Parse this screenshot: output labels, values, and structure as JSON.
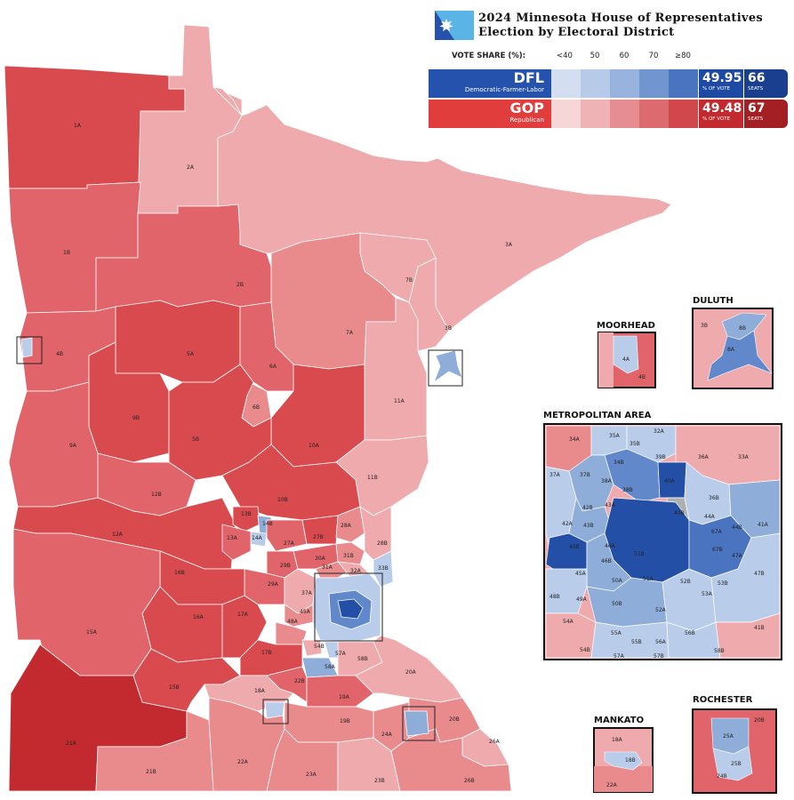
{
  "title": {
    "line1": "2024 Minnesota House of Representatives",
    "line2": "Election by Electoral District"
  },
  "legend": {
    "header": "VOTE SHARE (%):",
    "bins": [
      "<40",
      "50",
      "60",
      "70",
      "≥80"
    ],
    "dfl": {
      "short": "DFL",
      "long": "Democratic-Farmer-Labor",
      "vote_share": "49.95",
      "vote_share_caption": "% OF VOTE",
      "seats": "66",
      "seats_caption": "SEATS",
      "shades": [
        "#d3def0",
        "#b7cbe9",
        "#97b3de",
        "#7196cf",
        "#4a73c0",
        "#1e4aa3"
      ],
      "color": "#2552ad"
    },
    "gop": {
      "short": "GOP",
      "long": "Republican",
      "vote_share": "49.48",
      "vote_share_caption": "% OF VOTE",
      "seats": "67",
      "seats_caption": "SEATS",
      "shades": [
        "#f7d6d8",
        "#efb3b6",
        "#e68d91",
        "#dc6a6f",
        "#d1474c",
        "#c22a2f"
      ],
      "color": "#e23d3d"
    }
  },
  "insets": {
    "moorhead": "MOORHEAD",
    "duluth": "DULUTH",
    "metro": "METROPOLITAN AREA",
    "mankato": "MANKATO",
    "rochester": "ROCHESTER"
  },
  "district_labels": [
    "1A",
    "2A",
    "1B",
    "2B",
    "3A",
    "7B",
    "3B",
    "7A",
    "4B",
    "5A",
    "6A",
    "6B",
    "9B",
    "5B",
    "10A",
    "11A",
    "9A",
    "11B",
    "12B",
    "10B",
    "13B",
    "14B",
    "12A",
    "13A",
    "14A",
    "27A",
    "27B",
    "28A",
    "28B",
    "16B",
    "29B",
    "31B",
    "30A",
    "31A",
    "32A",
    "33B",
    "29A",
    "37A",
    "16A",
    "17A",
    "45A",
    "48A",
    "15A",
    "17B",
    "54B",
    "57A",
    "58A",
    "58B",
    "15B",
    "18A",
    "22B",
    "19A",
    "20A",
    "19B",
    "24A",
    "20B",
    "21A",
    "21B",
    "22A",
    "23A",
    "23B",
    "26A",
    "26B",
    "4A",
    "8B",
    "8A",
    "34A",
    "35A",
    "35B",
    "32A",
    "36A",
    "33A",
    "37A",
    "37B",
    "34B",
    "38A",
    "38B",
    "39B",
    "40A",
    "36B",
    "42B",
    "43A",
    "44A",
    "40B",
    "44B",
    "41A",
    "42A",
    "43B",
    "67A",
    "45B",
    "46A",
    "67B",
    "47A",
    "47B",
    "46B",
    "50A",
    "51B",
    "52B",
    "53B",
    "45A",
    "49A",
    "50B",
    "51A",
    "53A",
    "48B",
    "52A",
    "54A",
    "55A",
    "55B",
    "56A",
    "56B",
    "41B",
    "54B",
    "57A",
    "57B",
    "58B",
    "25A",
    "25B",
    "24B",
    "18B"
  ],
  "map_colors": {
    "gop_safe": "#d84a4e",
    "gop_likely": "#e06469",
    "gop_lean": "#e98a8d",
    "gop_tilt": "#eeaaac",
    "dfl_tilt": "#b9cdea",
    "dfl_lean": "#8fadd9",
    "dfl_likely": "#6088ca",
    "dfl_safe": "#244fa6",
    "undetermined": "#b0b0b0"
  }
}
